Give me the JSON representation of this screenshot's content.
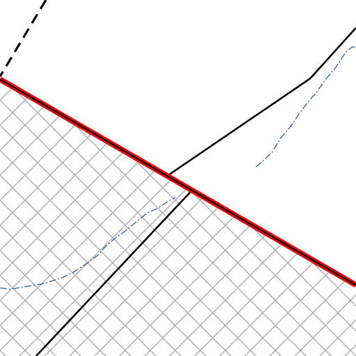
{
  "map": {
    "colors": {
      "background": "#ffffff",
      "hatch": "#b3b3b3",
      "boundary": "#ff0000",
      "boundary_core": "#000000",
      "road": "#000000",
      "contour": "#1f5fa8"
    },
    "features": [
      {
        "kind": "hatched-area",
        "pattern": "diagonal-cross"
      },
      {
        "kind": "highlighted-boundary-line"
      },
      {
        "kind": "dashed-line"
      },
      {
        "kind": "solid-road-line"
      },
      {
        "kind": "dash-dot-contour-line"
      }
    ]
  }
}
